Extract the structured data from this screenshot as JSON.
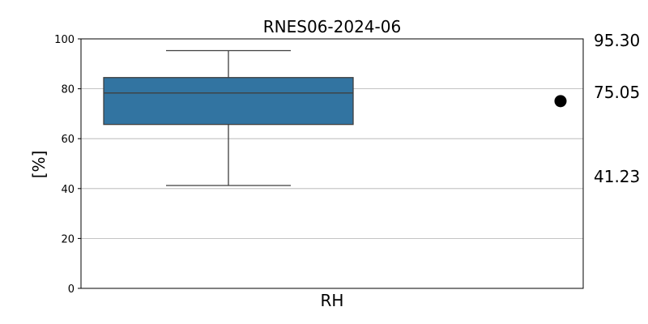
{
  "chart_data": {
    "type": "box",
    "title": "RNES06-2024-06",
    "xlabel": "",
    "ylabel": "[%]",
    "ylim": [
      0,
      100
    ],
    "yticks": [
      0,
      20,
      40,
      60,
      80,
      100
    ],
    "categories": [
      "RH"
    ],
    "grid": {
      "y": true,
      "x": false
    },
    "box": {
      "min": 41.23,
      "q1": 65.7,
      "median": 78.3,
      "q3": 84.5,
      "max": 95.3,
      "color": "#3274a1",
      "line_color": "#3f3f3f"
    },
    "current_value": {
      "value": 75.05,
      "marker_color": "#000000"
    },
    "side_labels": [
      "95.30",
      "75.05",
      "41.23"
    ]
  }
}
